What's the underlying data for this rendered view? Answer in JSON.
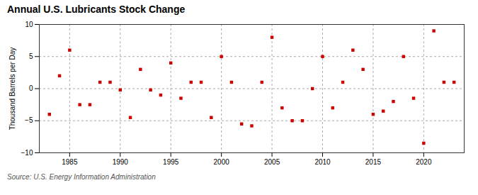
{
  "chart_data": {
    "type": "scatter",
    "title": "Annual U.S. Lubricants Stock Change",
    "ylabel": "Thousand Barrels per Day",
    "source": "Source: U.S. Energy Information Administration",
    "x": [
      1983,
      1984,
      1985,
      1986,
      1987,
      1988,
      1989,
      1990,
      1991,
      1992,
      1993,
      1994,
      1995,
      1996,
      1997,
      1998,
      1999,
      2000,
      2001,
      2002,
      2003,
      2004,
      2005,
      2006,
      2007,
      2008,
      2009,
      2010,
      2011,
      2012,
      2013,
      2014,
      2015,
      2016,
      2017,
      2018,
      2019,
      2020,
      2021,
      2022,
      2023
    ],
    "values": [
      -4.0,
      2.0,
      6.0,
      -2.5,
      -2.5,
      1.0,
      1.0,
      -0.2,
      -4.5,
      3.0,
      -0.2,
      -1.0,
      4.0,
      -1.5,
      1.0,
      1.0,
      -4.5,
      5.0,
      1.0,
      -5.5,
      -5.8,
      1.0,
      8.0,
      -3.0,
      -5.0,
      -5.0,
      0.0,
      5.0,
      -3.0,
      1.0,
      6.0,
      3.0,
      -4.0,
      -3.5,
      -2.0,
      5.0,
      -1.5,
      -8.5,
      9.0,
      1.0,
      1.0
    ],
    "color": "#cc0000",
    "marker": "square",
    "xlim": [
      1982,
      2024
    ],
    "ylim": [
      -10,
      10
    ],
    "xticks": [
      1985,
      1990,
      1995,
      2000,
      2005,
      2010,
      2015,
      2020
    ],
    "yticks": [
      -10,
      -5,
      0,
      5,
      10
    ],
    "grid": true
  }
}
